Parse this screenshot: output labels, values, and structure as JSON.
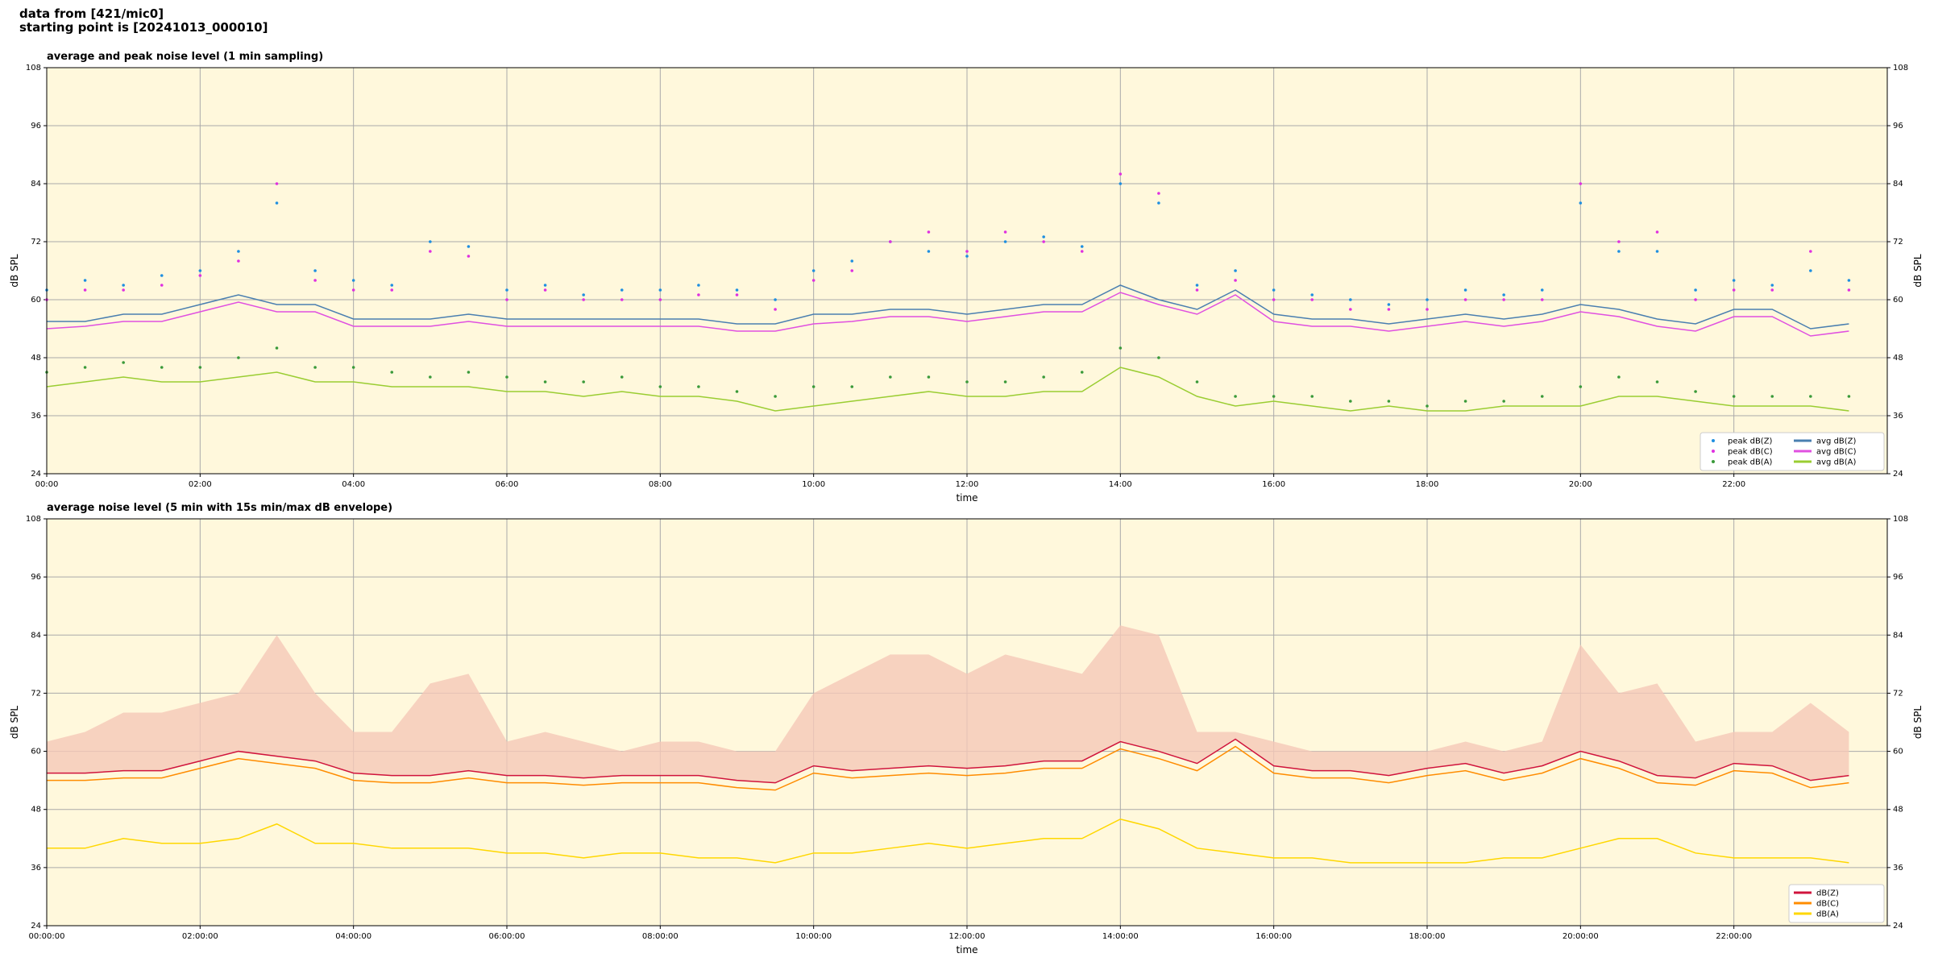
{
  "header": [
    "data from [421/mic0]",
    "starting point is [20241013_000010]"
  ],
  "chart_data": [
    {
      "type": "line",
      "title": "average and peak noise level (1 min sampling)",
      "xlabel": "time",
      "ylabel": "dB SPL",
      "x": [
        "00:00",
        "00:30",
        "01:00",
        "01:30",
        "02:00",
        "02:30",
        "03:00",
        "03:30",
        "04:00",
        "04:30",
        "05:00",
        "05:30",
        "06:00",
        "06:30",
        "07:00",
        "07:30",
        "08:00",
        "08:30",
        "09:00",
        "09:30",
        "10:00",
        "10:30",
        "11:00",
        "11:30",
        "12:00",
        "12:30",
        "13:00",
        "13:30",
        "14:00",
        "14:30",
        "15:00",
        "15:30",
        "16:00",
        "16:30",
        "17:00",
        "17:30",
        "18:00",
        "18:30",
        "19:00",
        "19:30",
        "20:00",
        "20:30",
        "21:00",
        "21:30",
        "22:00",
        "22:30",
        "23:00",
        "23:30"
      ],
      "xlim": [
        "00:00",
        "24:00"
      ],
      "xticks": [
        "00:00",
        "02:00",
        "04:00",
        "06:00",
        "08:00",
        "10:00",
        "12:00",
        "14:00",
        "16:00",
        "18:00",
        "20:00",
        "22:00"
      ],
      "ylim": [
        24,
        108
      ],
      "yticks": [
        24,
        36,
        48,
        60,
        72,
        84,
        96,
        108
      ],
      "grid": true,
      "legend": "lower right",
      "series": [
        {
          "name": "peak dB(Z)",
          "style": "points",
          "color": "#1f8fe0",
          "values": [
            62,
            64,
            63,
            65,
            66,
            70,
            80,
            66,
            64,
            63,
            72,
            71,
            62,
            63,
            61,
            62,
            62,
            63,
            62,
            60,
            66,
            68,
            72,
            70,
            69,
            72,
            73,
            71,
            84,
            80,
            63,
            66,
            62,
            61,
            60,
            59,
            60,
            62,
            61,
            62,
            80,
            70,
            70,
            62,
            64,
            63,
            66,
            64
          ]
        },
        {
          "name": "peak dB(C)",
          "style": "points",
          "color": "#e030e0",
          "values": [
            60,
            62,
            62,
            63,
            65,
            68,
            84,
            64,
            62,
            62,
            70,
            69,
            60,
            62,
            60,
            60,
            60,
            61,
            61,
            58,
            64,
            66,
            72,
            74,
            70,
            74,
            72,
            70,
            86,
            82,
            62,
            64,
            60,
            60,
            58,
            58,
            58,
            60,
            60,
            60,
            84,
            72,
            74,
            60,
            62,
            62,
            70,
            62
          ]
        },
        {
          "name": "peak dB(A)",
          "style": "points",
          "color": "#3a9a3a",
          "values": [
            45,
            46,
            47,
            46,
            46,
            48,
            50,
            46,
            46,
            45,
            44,
            45,
            44,
            43,
            43,
            44,
            42,
            42,
            41,
            40,
            42,
            42,
            44,
            44,
            43,
            43,
            44,
            45,
            50,
            48,
            43,
            40,
            40,
            40,
            39,
            39,
            38,
            39,
            39,
            40,
            42,
            44,
            43,
            41,
            40,
            40,
            40,
            40
          ]
        },
        {
          "name": "avg dB(Z)",
          "style": "line",
          "color": "#4a7fb0",
          "values": [
            55.5,
            55.5,
            57,
            57,
            59,
            61,
            59,
            59,
            56,
            56,
            56,
            57,
            56,
            56,
            56,
            56,
            56,
            56,
            55,
            55,
            57,
            57,
            58,
            58,
            57,
            58,
            59,
            59,
            63,
            60,
            58,
            62,
            57,
            56,
            56,
            55,
            56,
            57,
            56,
            57,
            59,
            58,
            56,
            55,
            58,
            58,
            54,
            55
          ]
        },
        {
          "name": "avg dB(C)",
          "style": "line",
          "color": "#e050e0",
          "values": [
            54,
            54.5,
            55.5,
            55.5,
            57.5,
            59.5,
            57.5,
            57.5,
            54.5,
            54.5,
            54.5,
            55.5,
            54.5,
            54.5,
            54.5,
            54.5,
            54.5,
            54.5,
            53.5,
            53.5,
            55,
            55.5,
            56.5,
            56.5,
            55.5,
            56.5,
            57.5,
            57.5,
            61.5,
            59,
            57,
            61,
            55.5,
            54.5,
            54.5,
            53.5,
            54.5,
            55.5,
            54.5,
            55.5,
            57.5,
            56.5,
            54.5,
            53.5,
            56.5,
            56.5,
            52.5,
            53.5
          ]
        },
        {
          "name": "avg dB(A)",
          "style": "line",
          "color": "#9acd32",
          "values": [
            42,
            43,
            44,
            43,
            43,
            44,
            45,
            43,
            43,
            42,
            42,
            42,
            41,
            41,
            40,
            41,
            40,
            40,
            39,
            37,
            38,
            39,
            40,
            41,
            40,
            40,
            41,
            41,
            46,
            44,
            40,
            38,
            39,
            38,
            37,
            38,
            37,
            37,
            38,
            38,
            38,
            40,
            40,
            39,
            38,
            38,
            38,
            37
          ]
        }
      ]
    },
    {
      "type": "line",
      "title": "average noise level (5 min with 15s min/max dB envelope)",
      "xlabel": "time",
      "ylabel": "dB SPL",
      "x": [
        "00:00:00",
        "00:30:00",
        "01:00:00",
        "01:30:00",
        "02:00:00",
        "02:30:00",
        "03:00:00",
        "03:30:00",
        "04:00:00",
        "04:30:00",
        "05:00:00",
        "05:30:00",
        "06:00:00",
        "06:30:00",
        "07:00:00",
        "07:30:00",
        "08:00:00",
        "08:30:00",
        "09:00:00",
        "09:30:00",
        "10:00:00",
        "10:30:00",
        "11:00:00",
        "11:30:00",
        "12:00:00",
        "12:30:00",
        "13:00:00",
        "13:30:00",
        "14:00:00",
        "14:30:00",
        "15:00:00",
        "15:30:00",
        "16:00:00",
        "16:30:00",
        "17:00:00",
        "17:30:00",
        "18:00:00",
        "18:30:00",
        "19:00:00",
        "19:30:00",
        "20:00:00",
        "20:30:00",
        "21:00:00",
        "21:30:00",
        "22:00:00",
        "22:30:00",
        "23:00:00",
        "23:30:00"
      ],
      "xlim": [
        "00:00:00",
        "24:00:00"
      ],
      "xticks": [
        "00:00:00",
        "02:00:00",
        "04:00:00",
        "06:00:00",
        "08:00:00",
        "10:00:00",
        "12:00:00",
        "14:00:00",
        "16:00:00",
        "18:00:00",
        "20:00:00",
        "22:00:00"
      ],
      "ylim": [
        24,
        108
      ],
      "yticks": [
        24,
        36,
        48,
        60,
        72,
        84,
        96,
        108
      ],
      "grid": true,
      "legend": "lower right",
      "series": [
        {
          "name": "dB(Z)",
          "style": "line",
          "color": "#d0143c",
          "envelope_color": "#f5c8b8",
          "max_values": [
            62,
            64,
            68,
            68,
            70,
            72,
            84,
            72,
            64,
            64,
            74,
            76,
            62,
            64,
            62,
            60,
            62,
            62,
            60,
            60,
            72,
            76,
            80,
            80,
            76,
            80,
            78,
            76,
            86,
            84,
            64,
            64,
            62,
            60,
            60,
            60,
            60,
            62,
            60,
            62,
            82,
            72,
            74,
            62,
            64,
            64,
            70,
            64
          ],
          "values": [
            55.5,
            55.5,
            56,
            56,
            58,
            60,
            59,
            58,
            55.5,
            55,
            55,
            56,
            55,
            55,
            54.5,
            55,
            55,
            55,
            54,
            53.5,
            57,
            56,
            56.5,
            57,
            56.5,
            57,
            58,
            58,
            62,
            60,
            57.5,
            62.5,
            57,
            56,
            56,
            55,
            56.5,
            57.5,
            55.5,
            57,
            60,
            58,
            55,
            54.5,
            57.5,
            57,
            54,
            55
          ]
        },
        {
          "name": "dB(C)",
          "style": "line",
          "color": "#ff8c00",
          "values": [
            54,
            54,
            54.5,
            54.5,
            56.5,
            58.5,
            57.5,
            56.5,
            54,
            53.5,
            53.5,
            54.5,
            53.5,
            53.5,
            53,
            53.5,
            53.5,
            53.5,
            52.5,
            52,
            55.5,
            54.5,
            55,
            55.5,
            55,
            55.5,
            56.5,
            56.5,
            60.5,
            58.5,
            56,
            61,
            55.5,
            54.5,
            54.5,
            53.5,
            55,
            56,
            54,
            55.5,
            58.5,
            56.5,
            53.5,
            53,
            56,
            55.5,
            52.5,
            53.5
          ]
        },
        {
          "name": "dB(A)",
          "style": "line",
          "color": "#ffd700",
          "values": [
            40,
            40,
            42,
            41,
            41,
            42,
            45,
            41,
            41,
            40,
            40,
            40,
            39,
            39,
            38,
            39,
            39,
            38,
            38,
            37,
            39,
            39,
            40,
            41,
            40,
            41,
            42,
            42,
            46,
            44,
            40,
            39,
            38,
            38,
            37,
            37,
            37,
            37,
            38,
            38,
            40,
            42,
            42,
            39,
            38,
            38,
            38,
            37
          ]
        }
      ]
    }
  ]
}
